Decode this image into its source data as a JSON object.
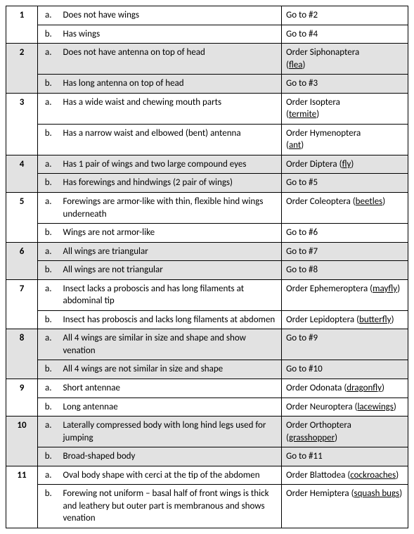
{
  "letters": {
    "a": "a.",
    "b": "b."
  },
  "goto": "Go to #",
  "order_prefix": "Order ",
  "steps": [
    {
      "num": "1",
      "shaded": false,
      "a": {
        "desc": "Does not have wings",
        "result": {
          "type": "goto",
          "target": "2"
        }
      },
      "b": {
        "desc": "Has wings",
        "result": {
          "type": "goto",
          "target": "4"
        }
      }
    },
    {
      "num": "2",
      "shaded": true,
      "a": {
        "desc": "Does not have antenna on top of head",
        "result": {
          "type": "order",
          "order": "Siphonaptera",
          "common": "flea",
          "stacked": true
        }
      },
      "b": {
        "desc": "Has long antenna on top of head",
        "result": {
          "type": "goto",
          "target": "3"
        }
      }
    },
    {
      "num": "3",
      "shaded": false,
      "a": {
        "desc": "Has a wide waist and chewing mouth parts",
        "result": {
          "type": "order",
          "order": "Isoptera",
          "common": "termite",
          "stacked": true
        }
      },
      "b": {
        "desc": "Has a narrow waist and elbowed (bent) antenna",
        "result": {
          "type": "order",
          "order": "Hymenoptera",
          "common": "ant",
          "stacked": true
        }
      }
    },
    {
      "num": "4",
      "shaded": true,
      "a": {
        "desc": "Has 1 pair of wings and two large compound eyes",
        "result": {
          "type": "order",
          "order": "Diptera",
          "common": "fly",
          "stacked": false
        }
      },
      "b": {
        "desc": "Has forewings and hindwings (2 pair of wings)",
        "result": {
          "type": "goto",
          "target": "5"
        }
      }
    },
    {
      "num": "5",
      "shaded": false,
      "a": {
        "desc": "Forewings are armor-like with thin, flexible hind wings underneath",
        "result": {
          "type": "order",
          "order": "Coleoptera",
          "common": "beetles",
          "stacked": false
        }
      },
      "b": {
        "desc": "Wings are not armor-like",
        "result": {
          "type": "goto",
          "target": "6"
        }
      }
    },
    {
      "num": "6",
      "shaded": true,
      "a": {
        "desc": "All wings are triangular",
        "result": {
          "type": "goto",
          "target": "7"
        }
      },
      "b": {
        "desc": "All wings are not triangular",
        "result": {
          "type": "goto",
          "target": "8"
        }
      }
    },
    {
      "num": "7",
      "shaded": false,
      "a": {
        "desc": "Insect lacks a proboscis and has long filaments at abdominal tip",
        "result": {
          "type": "order",
          "order": "Ephemeroptera",
          "common": "mayfly",
          "stacked": false
        }
      },
      "b": {
        "desc": "Insect has proboscis and lacks long filaments at abdomen",
        "result": {
          "type": "order",
          "order": "Lepidoptera",
          "common": "butterfly",
          "stacked": false
        }
      }
    },
    {
      "num": "8",
      "shaded": true,
      "a": {
        "desc": "All 4 wings are similar in size and shape and show venation",
        "result": {
          "type": "goto",
          "target": "9"
        }
      },
      "b": {
        "desc": "All 4 wings are not similar in size and shape",
        "result": {
          "type": "goto",
          "target": "10"
        }
      }
    },
    {
      "num": "9",
      "shaded": false,
      "a": {
        "desc": "Short antennae",
        "result": {
          "type": "order",
          "order": "Odonata",
          "common": "dragonfly",
          "stacked": false
        }
      },
      "b": {
        "desc": "Long antennae",
        "result": {
          "type": "order",
          "order": "Neuroptera",
          "common": "lacewings",
          "stacked": false
        }
      }
    },
    {
      "num": "10",
      "shaded": true,
      "a": {
        "desc": "Laterally compressed body with long hind legs used for jumping",
        "result": {
          "type": "order",
          "order": "Orthoptera",
          "common": "grasshopper",
          "stacked": false
        }
      },
      "b": {
        "desc": "Broad-shaped body",
        "result": {
          "type": "goto",
          "target": "11"
        }
      }
    },
    {
      "num": "11",
      "shaded": false,
      "a": {
        "desc": "Oval body shape with cerci at the tip of the abdomen",
        "result": {
          "type": "order",
          "order": "Blattodea",
          "common": "cockroaches",
          "stacked": false
        }
      },
      "b": {
        "desc": "Forewing not uniform – basal half of front wings is thick and leathery but outer part is membranous and shows venation",
        "result": {
          "type": "order",
          "order": "Hemiptera",
          "common": "squash bugs",
          "stacked": false
        }
      }
    }
  ]
}
